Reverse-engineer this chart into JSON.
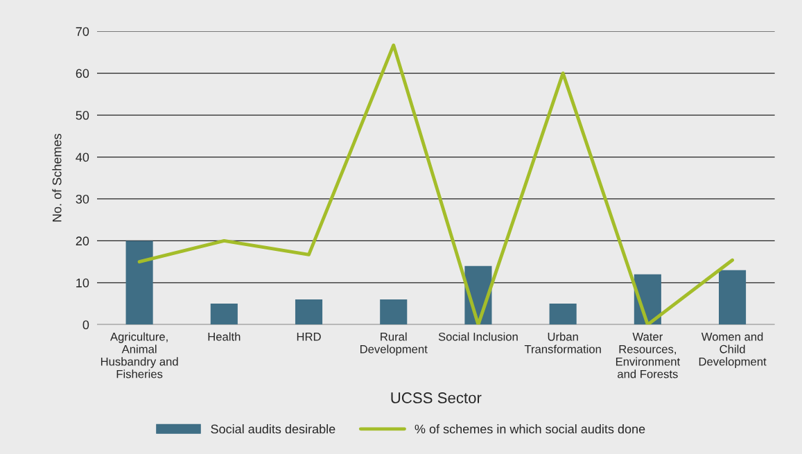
{
  "chart_data": {
    "type": "bar",
    "xlabel": "UCSS Sector",
    "ylabel": "No. of Schemes",
    "categories": [
      "Agriculture,\nAnimal\nHusbandry and\nFisheries",
      "Health",
      "HRD",
      "Rural\nDevelopment",
      "Social Inclusion",
      "Urban\nTransformation",
      "Water\nResources,\nEnvironment\nand Forests",
      "Women and\nChild\nDevelopment"
    ],
    "series": [
      {
        "name": "Social audits desirable",
        "color": "#3f6e85",
        "values": [
          20,
          5,
          6,
          6,
          14,
          5,
          12,
          13
        ]
      },
      {
        "name": "% of schemes in which social audits done",
        "type": "line",
        "color": "#a4bd2a",
        "values": [
          15,
          20,
          16.7,
          66.7,
          0,
          60,
          0,
          15.4
        ]
      }
    ],
    "ylim": [
      0,
      70
    ],
    "yticks": [
      0,
      10,
      20,
      30,
      40,
      50,
      60,
      70
    ],
    "grid": "y",
    "legend": "bottom",
    "marker": "none",
    "line_style": "solid"
  }
}
